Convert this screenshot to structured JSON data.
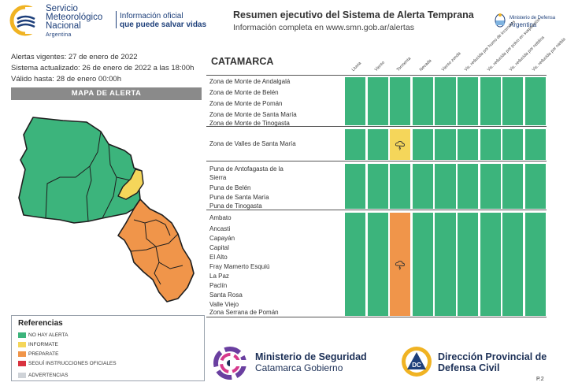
{
  "header": {
    "org_name_1": "Servicio",
    "org_name_2": "Meteorológico",
    "org_name_3": "Nacional",
    "org_country": "Argentina",
    "slogan_1": "Información oficial",
    "slogan_2": "que puede salvar vidas",
    "title": "Resumen ejecutivo del Sistema de Alerta Temprana",
    "subtitle": "Información completa en www.smn.gob.ar/alertas",
    "ministry_1": "Ministerio de Defensa",
    "ministry_2": "Argentina"
  },
  "info": {
    "alerts_valid": "Alertas vigentes: 27 de enero de 2022",
    "updated": "Sistema actualizado: 26 de enero de 2022 a las 18:00h",
    "valid_until": "Válido hasta: 28 de enero 00:00h"
  },
  "map": {
    "title": "MAPA DE ALERTA"
  },
  "legend": {
    "title": "Referencias",
    "items": [
      {
        "label": "NO HAY ALERTA",
        "color": "#3cb47c"
      },
      {
        "label": "INFORMATE",
        "color": "#f5d65a"
      },
      {
        "label": "PREPARATE",
        "color": "#f0954a"
      },
      {
        "label": "SEGUÍ INSTRUCCIONES OFICIALES",
        "color": "#d9323f"
      },
      {
        "label": "ADVERTENCIAS",
        "color": "#cfd3d8"
      }
    ]
  },
  "table": {
    "province": "CATAMARCA",
    "columns": [
      "Lluvia",
      "Viento",
      "Tormenta",
      "Nevada",
      "Viento zonda",
      "Vis. reducida por humo de incendios",
      "Vis. reducida por polvo en suspensión",
      "Vis. reducida por neblina",
      "Vis. reducida por niebla"
    ],
    "groups": [
      {
        "zones": [
          "Zona de Monte de Andalgalá",
          "Zona de Monte de Belén",
          "Zona de Monte de Pomán",
          "Zona de Monte de Santa María",
          "Zona de Monte de Tinogasta"
        ],
        "levels": [
          "none",
          "none",
          "none",
          "none",
          "none",
          "none",
          "none",
          "none",
          "none"
        ]
      },
      {
        "zones": [
          "Zona de Valles de Santa María"
        ],
        "levels": [
          "none",
          "none",
          "yellow",
          "none",
          "none",
          "none",
          "none",
          "none",
          "none"
        ]
      },
      {
        "zones": [
          "Puna de Antofagasta de la",
          "Sierra",
          "Puna de Belén",
          "Puna de Santa María",
          "Puna de Tinogasta"
        ],
        "levels": [
          "none",
          "none",
          "none",
          "none",
          "none",
          "none",
          "none",
          "none",
          "none"
        ]
      },
      {
        "zones": [
          "Ambato",
          "Ancasti",
          "Capayán",
          "Capital",
          "El Alto",
          "Fray Mamerto Esquiú",
          "La Paz",
          "Paclín",
          "Santa Rosa",
          "Valle Viejo",
          "Zona Serrana de Pomán"
        ],
        "levels": [
          "none",
          "none",
          "orange",
          "none",
          "none",
          "none",
          "none",
          "none",
          "none"
        ]
      }
    ]
  },
  "colors": {
    "none": "#3cb47c",
    "yellow": "#f5d65a",
    "orange": "#f0954a"
  },
  "footer": {
    "ministry_line1": "Ministerio de Seguridad",
    "ministry_line2": "Catamarca Gobierno",
    "civil_line1": "Dirección Provincial de",
    "civil_line2": "Defensa Civil",
    "dc_badge": "DC",
    "page": "P.2"
  }
}
